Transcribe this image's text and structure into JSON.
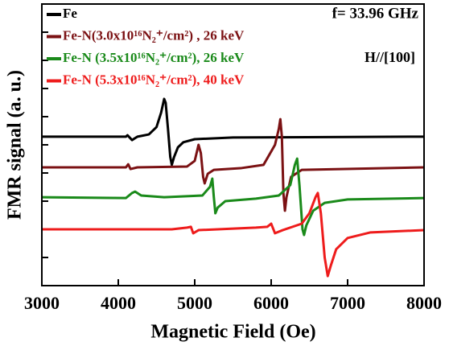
{
  "chart_data": {
    "type": "line",
    "xlabel": "Magnetic Field (Oe)",
    "ylabel": "FMR signal (a. u.)",
    "annotations": [
      "f= 33.96 GHz",
      "H//[100]"
    ],
    "xlim": [
      3000,
      8000
    ],
    "xticks": [
      3000,
      4000,
      5000,
      6000,
      7000,
      8000
    ],
    "ylim": [
      0,
      10
    ],
    "yticks": [
      1,
      2,
      3,
      4,
      5,
      6,
      7,
      8,
      9
    ],
    "legend": "upper left",
    "series": [
      {
        "name": "Fe",
        "color": "#000000",
        "x": [
          3000,
          4100,
          4120,
          4180,
          4250,
          4400,
          4500,
          4560,
          4600,
          4620,
          4650,
          4680,
          4700,
          4730,
          4780,
          4850,
          5000,
          5500,
          8000
        ],
        "values": [
          5.29,
          5.29,
          5.34,
          5.17,
          5.29,
          5.37,
          5.63,
          6.14,
          6.63,
          6.49,
          5.57,
          4.57,
          4.29,
          4.57,
          4.91,
          5.09,
          5.2,
          5.26,
          5.29
        ]
      },
      {
        "name": "Fe-N(3.0x10¹⁶N₂⁺/cm²) , 26 keV",
        "color": "#7b1113",
        "x": [
          3000,
          4100,
          4130,
          4160,
          4250,
          4900,
          5000,
          5050,
          5080,
          5110,
          5130,
          5170,
          5250,
          5600,
          5900,
          6050,
          6100,
          6120,
          6140,
          6160,
          6180,
          6200,
          6260,
          6400,
          8000
        ],
        "values": [
          4.2,
          4.2,
          4.31,
          4.14,
          4.2,
          4.23,
          4.43,
          5.0,
          4.71,
          3.86,
          3.63,
          3.97,
          4.11,
          4.17,
          4.29,
          5.0,
          5.57,
          5.91,
          5.29,
          3.29,
          2.66,
          3.14,
          3.86,
          4.11,
          4.2
        ]
      },
      {
        "name": "Fe-N (3.5x10¹⁶N₂⁺/cm²), 26 keV",
        "color": "#1a8a1a",
        "x": [
          3000,
          4100,
          4180,
          4220,
          4300,
          4600,
          5100,
          5200,
          5230,
          5250,
          5270,
          5300,
          5400,
          5800,
          6100,
          6250,
          6310,
          6340,
          6370,
          6410,
          6430,
          6460,
          6550,
          6700,
          7000,
          8000
        ],
        "values": [
          3.14,
          3.11,
          3.29,
          3.34,
          3.2,
          3.14,
          3.2,
          3.51,
          3.8,
          3.14,
          2.57,
          2.77,
          3.0,
          3.09,
          3.2,
          3.57,
          4.29,
          4.51,
          3.57,
          2.0,
          1.8,
          2.14,
          2.66,
          2.94,
          3.06,
          3.11
        ]
      },
      {
        "name": "Fe-N (5.3x10¹⁶N₂⁺/cm²), 40 keV",
        "color": "#ee1c1c",
        "x": [
          3000,
          4700,
          4900,
          4950,
          4980,
          5050,
          5800,
          5950,
          6000,
          6050,
          6150,
          6400,
          6500,
          6580,
          6610,
          6650,
          6700,
          6740,
          6780,
          6850,
          7000,
          7300,
          8000
        ],
        "values": [
          2.0,
          2.0,
          2.06,
          2.09,
          1.86,
          1.97,
          2.06,
          2.09,
          2.2,
          1.86,
          1.97,
          2.2,
          2.57,
          3.14,
          3.29,
          2.57,
          1.0,
          0.34,
          0.71,
          1.29,
          1.69,
          1.89,
          1.97
        ]
      }
    ]
  }
}
